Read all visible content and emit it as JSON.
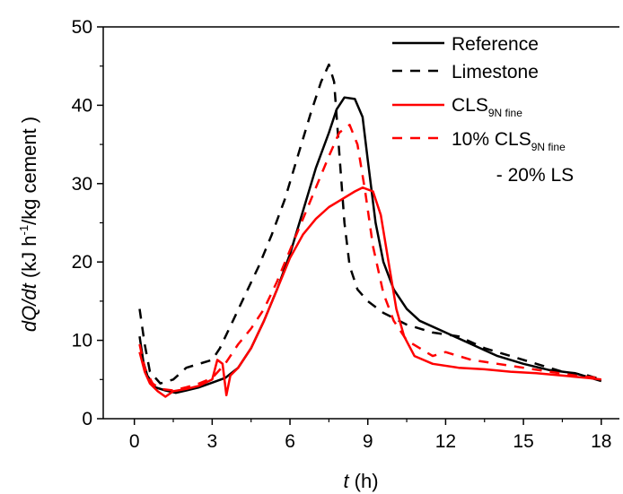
{
  "chart_data": {
    "type": "line",
    "title": "",
    "xlabel": {
      "italic": "t",
      "rest": " (h)"
    },
    "ylabel": {
      "italic": "dQ/dt",
      "pre": " (kJ h",
      "sup1": "-1",
      "post": "/kg cement )"
    },
    "xlim": [
      -1.2,
      18.7
    ],
    "ylim": [
      0,
      50
    ],
    "xticks": [
      0,
      3,
      6,
      9,
      12,
      15,
      18
    ],
    "xtick_labels": [
      "0",
      "3",
      "6",
      "9",
      "12",
      "15",
      "18"
    ],
    "yticks": [
      0,
      10,
      20,
      30,
      40,
      50
    ],
    "ytick_labels": [
      "0",
      "10",
      "20",
      "30",
      "40",
      "50"
    ],
    "grid": false,
    "legend_position": "top-right",
    "series": [
      {
        "name": "Reference",
        "color": "#000000",
        "dash": "solid",
        "points": [
          [
            0.2,
            10.5
          ],
          [
            0.35,
            7.2
          ],
          [
            0.5,
            5.5
          ],
          [
            0.8,
            4.0
          ],
          [
            1.2,
            3.6
          ],
          [
            1.6,
            3.3
          ],
          [
            2.0,
            3.6
          ],
          [
            2.5,
            4.0
          ],
          [
            3.0,
            4.6
          ],
          [
            3.5,
            5.2
          ],
          [
            4.0,
            6.5
          ],
          [
            4.5,
            9.0
          ],
          [
            5.0,
            12.5
          ],
          [
            5.5,
            16.5
          ],
          [
            6.0,
            21.0
          ],
          [
            6.5,
            26.5
          ],
          [
            7.0,
            32.0
          ],
          [
            7.5,
            36.5
          ],
          [
            7.8,
            39.5
          ],
          [
            8.1,
            41.0
          ],
          [
            8.5,
            40.8
          ],
          [
            8.8,
            38.5
          ],
          [
            9.0,
            33.0
          ],
          [
            9.3,
            25.0
          ],
          [
            9.6,
            20.0
          ],
          [
            10.0,
            16.5
          ],
          [
            10.5,
            14.0
          ],
          [
            11.0,
            12.5
          ],
          [
            12.0,
            11.0
          ],
          [
            13.0,
            9.5
          ],
          [
            14.0,
            8.0
          ],
          [
            15.0,
            7.0
          ],
          [
            16.0,
            6.2
          ],
          [
            17.0,
            5.8
          ],
          [
            18.0,
            4.8
          ]
        ]
      },
      {
        "name": "Limestone",
        "color": "#000000",
        "dash": "dashed",
        "points": [
          [
            0.2,
            14.0
          ],
          [
            0.4,
            9.5
          ],
          [
            0.6,
            6.0
          ],
          [
            1.0,
            4.5
          ],
          [
            1.5,
            5.0
          ],
          [
            2.0,
            6.5
          ],
          [
            2.5,
            7.0
          ],
          [
            3.0,
            7.5
          ],
          [
            3.3,
            9.0
          ],
          [
            3.8,
            12.5
          ],
          [
            4.3,
            16.0
          ],
          [
            4.8,
            19.5
          ],
          [
            5.3,
            23.5
          ],
          [
            5.8,
            28.0
          ],
          [
            6.3,
            33.5
          ],
          [
            6.8,
            39.0
          ],
          [
            7.2,
            43.0
          ],
          [
            7.5,
            45.2
          ],
          [
            7.7,
            43.0
          ],
          [
            7.9,
            34.0
          ],
          [
            8.1,
            25.0
          ],
          [
            8.3,
            19.5
          ],
          [
            8.6,
            16.5
          ],
          [
            9.0,
            15.0
          ],
          [
            9.6,
            13.5
          ],
          [
            10.5,
            12.0
          ],
          [
            11.5,
            11.0
          ],
          [
            12.5,
            10.5
          ],
          [
            13.5,
            9.0
          ],
          [
            14.5,
            8.0
          ],
          [
            15.5,
            7.0
          ],
          [
            16.5,
            6.0
          ],
          [
            17.5,
            5.5
          ],
          [
            18.0,
            5.0
          ]
        ]
      },
      {
        "name": "CLS9N fine",
        "name_main": "CLS",
        "name_sub": "9N fine",
        "color": "#ff0000",
        "dash": "solid",
        "points": [
          [
            0.2,
            8.5
          ],
          [
            0.4,
            6.0
          ],
          [
            0.6,
            4.5
          ],
          [
            0.9,
            3.5
          ],
          [
            1.2,
            2.8
          ],
          [
            1.5,
            3.5
          ],
          [
            2.0,
            3.8
          ],
          [
            2.5,
            4.2
          ],
          [
            3.0,
            5.0
          ],
          [
            3.2,
            7.5
          ],
          [
            3.4,
            7.0
          ],
          [
            3.55,
            3.0
          ],
          [
            3.7,
            5.5
          ],
          [
            4.0,
            6.5
          ],
          [
            4.5,
            9.0
          ],
          [
            5.0,
            12.5
          ],
          [
            5.5,
            16.5
          ],
          [
            6.0,
            20.5
          ],
          [
            6.5,
            23.5
          ],
          [
            7.0,
            25.5
          ],
          [
            7.5,
            27.0
          ],
          [
            8.0,
            28.0
          ],
          [
            8.5,
            29.0
          ],
          [
            8.8,
            29.5
          ],
          [
            9.2,
            29.0
          ],
          [
            9.5,
            26.0
          ],
          [
            9.8,
            20.0
          ],
          [
            10.1,
            14.0
          ],
          [
            10.4,
            10.5
          ],
          [
            10.8,
            8.0
          ],
          [
            11.5,
            7.0
          ],
          [
            12.5,
            6.5
          ],
          [
            13.5,
            6.3
          ],
          [
            14.5,
            6.0
          ],
          [
            15.5,
            5.8
          ],
          [
            16.5,
            5.5
          ],
          [
            17.5,
            5.2
          ],
          [
            18.0,
            5.0
          ]
        ]
      },
      {
        "name": "10% CLS9N fine - 20% LS",
        "name_line1_main": "10% CLS",
        "name_line1_sub": "9N fine",
        "name_line2": "- 20% LS",
        "color": "#ff0000",
        "dash": "dashed",
        "points": [
          [
            0.2,
            9.5
          ],
          [
            0.4,
            6.5
          ],
          [
            0.7,
            4.5
          ],
          [
            1.0,
            3.8
          ],
          [
            1.5,
            3.6
          ],
          [
            2.0,
            4.0
          ],
          [
            2.5,
            4.5
          ],
          [
            3.0,
            5.2
          ],
          [
            3.5,
            7.0
          ],
          [
            4.0,
            9.5
          ],
          [
            4.5,
            11.5
          ],
          [
            5.0,
            14.0
          ],
          [
            5.5,
            17.5
          ],
          [
            6.0,
            21.5
          ],
          [
            6.5,
            25.5
          ],
          [
            7.0,
            29.5
          ],
          [
            7.5,
            33.5
          ],
          [
            7.9,
            36.5
          ],
          [
            8.3,
            37.5
          ],
          [
            8.6,
            35.0
          ],
          [
            8.9,
            29.0
          ],
          [
            9.2,
            22.0
          ],
          [
            9.6,
            16.0
          ],
          [
            10.0,
            12.5
          ],
          [
            10.5,
            10.0
          ],
          [
            11.0,
            9.0
          ],
          [
            11.5,
            8.0
          ],
          [
            12.0,
            8.5
          ],
          [
            12.5,
            8.0
          ],
          [
            13.0,
            7.5
          ],
          [
            14.0,
            7.0
          ],
          [
            15.0,
            6.5
          ],
          [
            16.0,
            6.0
          ],
          [
            17.0,
            5.5
          ],
          [
            18.0,
            5.2
          ]
        ]
      }
    ]
  }
}
